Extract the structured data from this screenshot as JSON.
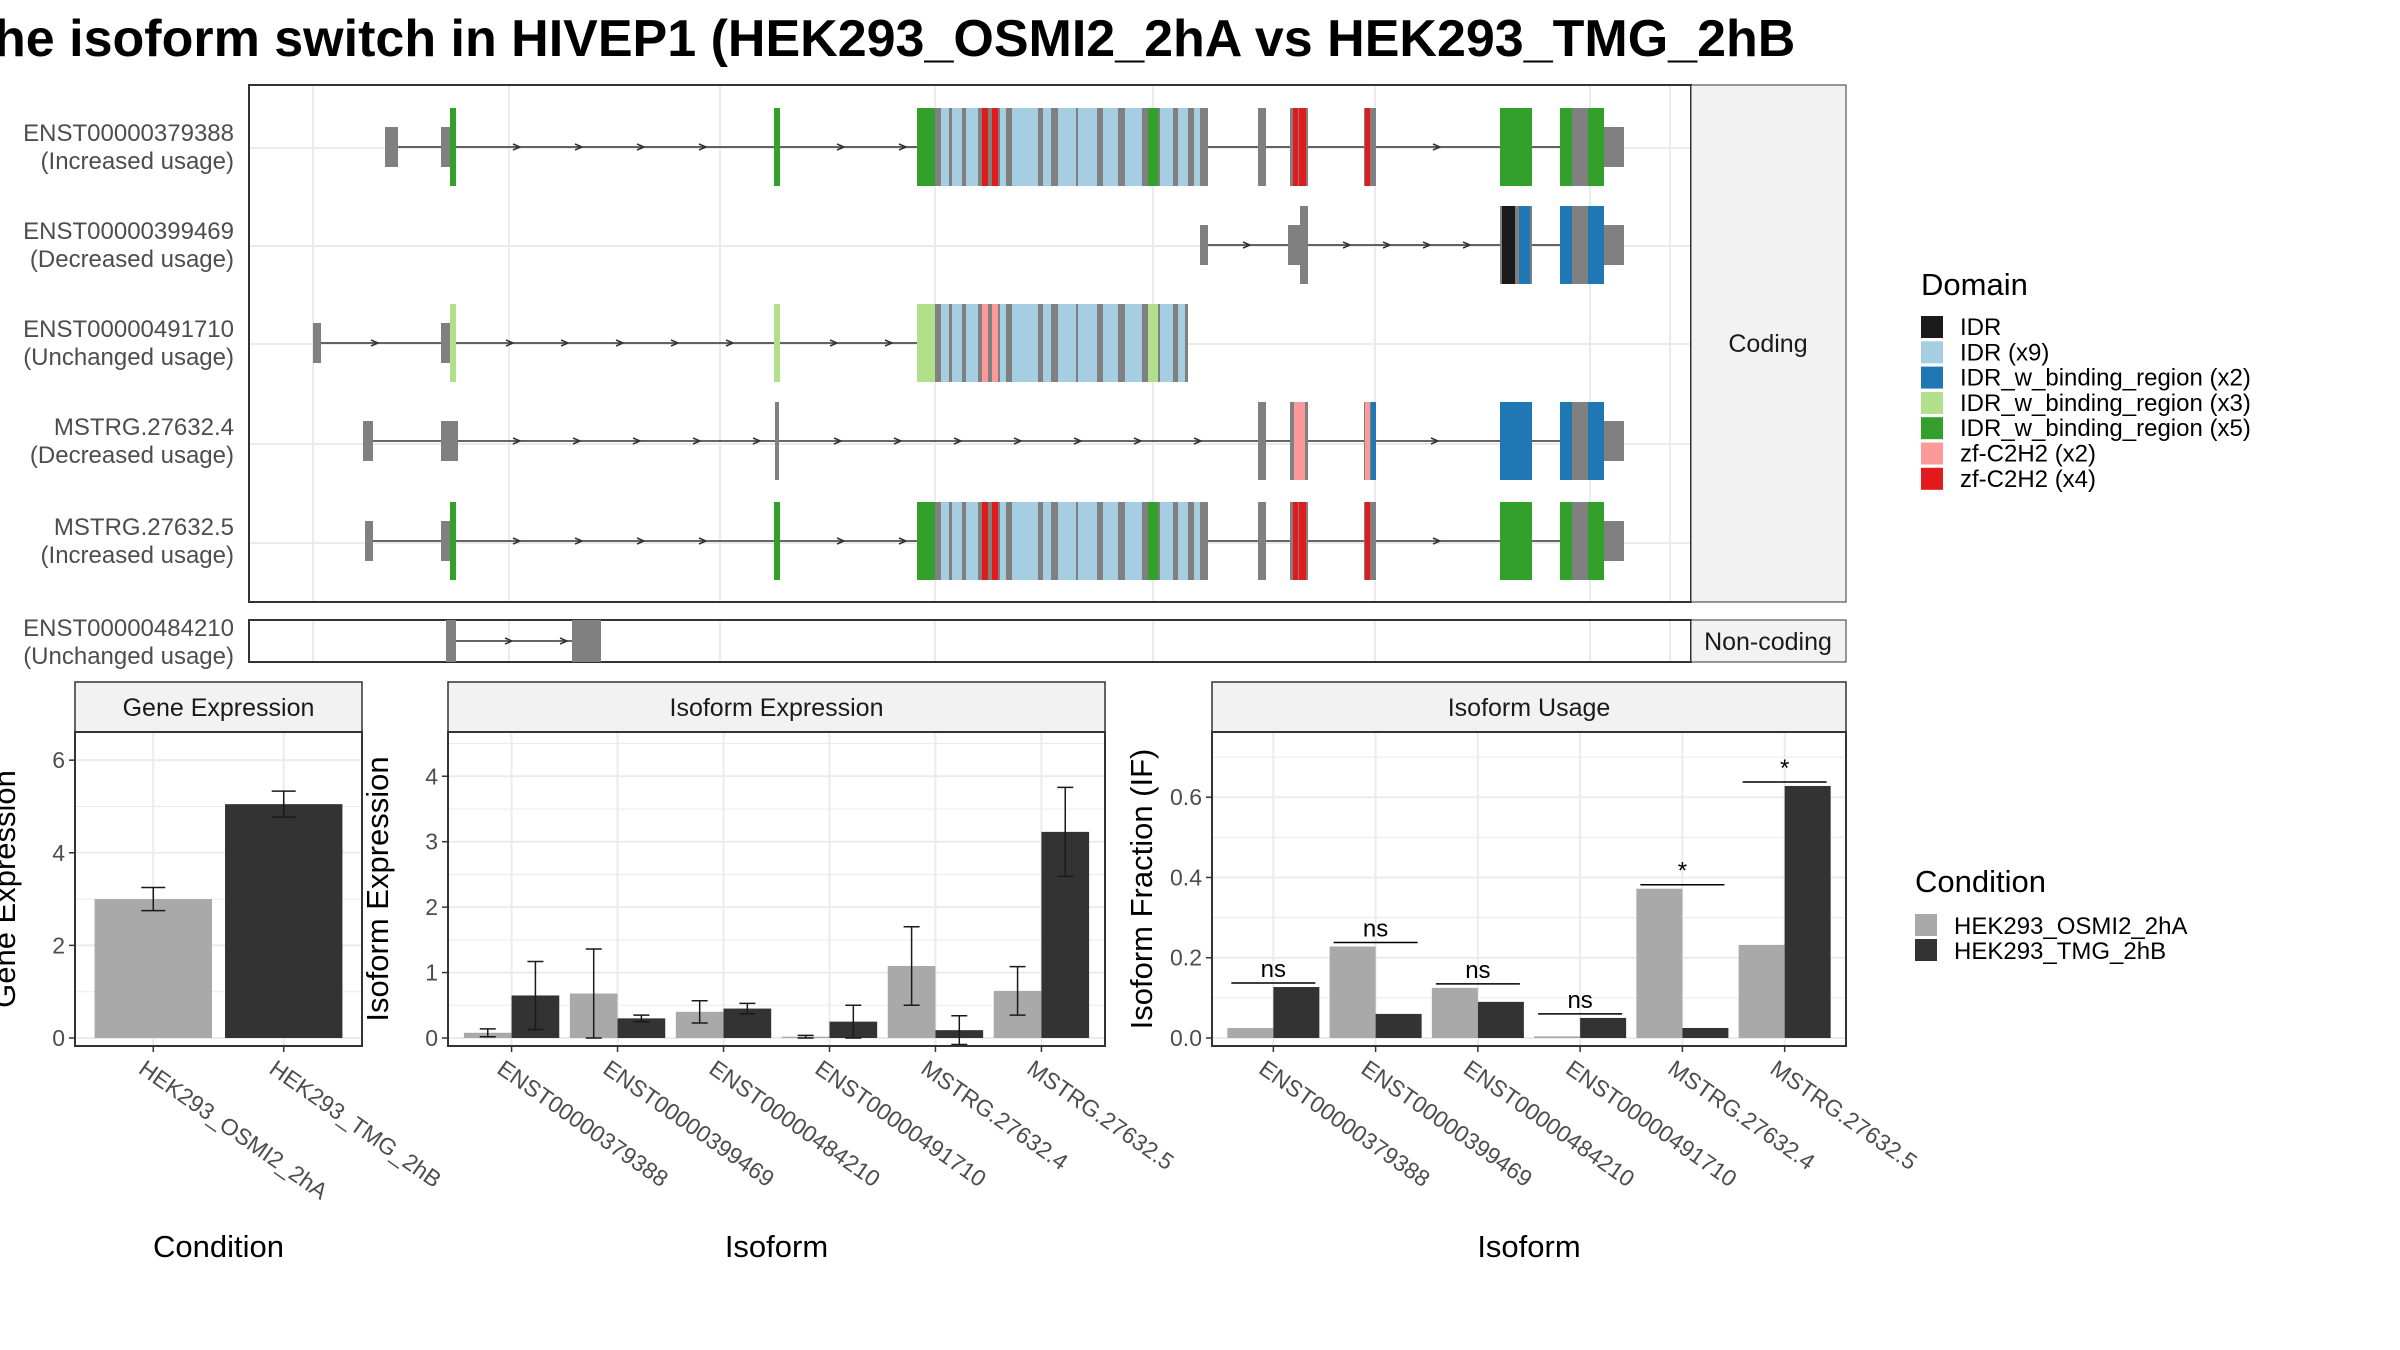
{
  "title": "he isoform switch in HIVEP1 (HEK293_OSMI2_2hA vs HEK293_TMG_2hB",
  "colors": {
    "grey_exon": "#808080",
    "IDR": "#1a1a1a",
    "IDR_x9": "#a6cee3",
    "IDR_w_binding_region_x2": "#1f78b4",
    "IDR_w_binding_region_x3": "#b2df8a",
    "IDR_w_binding_region_x5": "#33a02c",
    "zf_C2H2_x2": "#fb9a99",
    "zf_C2H2_x4": "#e31a1c",
    "cond_a": "#a9a9a9",
    "cond_b": "#333333"
  },
  "structure": {
    "coding_label": "Coding",
    "noncoding_label": "Non-coding",
    "transcripts": [
      {
        "id": "ENST00000379388",
        "usage": "(Increased usage)"
      },
      {
        "id": "ENST00000399469",
        "usage": "(Decreased usage)"
      },
      {
        "id": "ENST00000491710",
        "usage": "(Unchanged usage)"
      },
      {
        "id": "MSTRG.27632.4",
        "usage": "(Decreased usage)"
      },
      {
        "id": "MSTRG.27632.5",
        "usage": "(Increased usage)"
      }
    ],
    "noncoding": {
      "id": "ENST00000484210",
      "usage": "(Unchanged usage)"
    }
  },
  "domain_legend": {
    "title": "Domain",
    "items": [
      {
        "label": "IDR",
        "color": "#1a1a1a"
      },
      {
        "label": "IDR (x9)",
        "color": "#a6cee3"
      },
      {
        "label": "IDR_w_binding_region (x2)",
        "color": "#1f78b4"
      },
      {
        "label": "IDR_w_binding_region (x3)",
        "color": "#b2df8a"
      },
      {
        "label": "IDR_w_binding_region (x5)",
        "color": "#33a02c"
      },
      {
        "label": "zf-C2H2 (x2)",
        "color": "#fb9a99"
      },
      {
        "label": "zf-C2H2 (x4)",
        "color": "#e31a1c"
      }
    ]
  },
  "condition_legend": {
    "title": "Condition",
    "items": [
      {
        "label": "HEK293_OSMI2_2hA",
        "color": "#a9a9a9"
      },
      {
        "label": "HEK293_TMG_2hB",
        "color": "#333333"
      }
    ]
  },
  "chart_data": [
    {
      "type": "bar",
      "title": "Gene Expression",
      "xlabel": "Condition",
      "ylabel": "Gene Expression",
      "categories": [
        "HEK293_OSMI2_2hA",
        "HEK293_TMG_2hB"
      ],
      "values": [
        3.0,
        5.05
      ],
      "errors": [
        0.25,
        0.28
      ],
      "ylim": [
        0,
        6.5
      ],
      "yticks": [
        0,
        2,
        4,
        6
      ]
    },
    {
      "type": "bar",
      "title": "Isoform Expression",
      "xlabel": "Isoform",
      "ylabel": "Isoform Expression",
      "categories": [
        "ENST00000379388",
        "ENST00000399469",
        "ENST00000484210",
        "ENST00000491710",
        "MSTRG.27632.4",
        "MSTRG.27632.5"
      ],
      "series": [
        {
          "name": "HEK293_OSMI2_2hA",
          "values": [
            0.08,
            0.68,
            0.4,
            0.02,
            1.1,
            0.72
          ],
          "errors": [
            0.06,
            0.68,
            0.17,
            0.02,
            0.6,
            0.37
          ]
        },
        {
          "name": "HEK293_TMG_2hB",
          "values": [
            0.65,
            0.3,
            0.45,
            0.25,
            0.12,
            3.15
          ],
          "errors": [
            0.52,
            0.05,
            0.08,
            0.25,
            0.22,
            0.68
          ]
        }
      ],
      "ylim": [
        0,
        4.6
      ],
      "yticks": [
        0,
        1,
        2,
        3,
        4
      ]
    },
    {
      "type": "bar",
      "title": "Isoform Usage",
      "xlabel": "Isoform",
      "ylabel": "Isoform Fraction (IF)",
      "categories": [
        "ENST00000379388",
        "ENST00000399469",
        "ENST00000484210",
        "ENST00000491710",
        "MSTRG.27632.4",
        "MSTRG.27632.5"
      ],
      "series": [
        {
          "name": "HEK293_OSMI2_2hA",
          "values": [
            0.025,
            0.228,
            0.125,
            0.004,
            0.372,
            0.232
          ]
        },
        {
          "name": "HEK293_TMG_2hB",
          "values": [
            0.127,
            0.06,
            0.09,
            0.05,
            0.025,
            0.628
          ]
        }
      ],
      "significance": [
        "ns",
        "ns",
        "ns",
        "ns",
        "*",
        "*"
      ],
      "ylim": [
        0,
        0.75
      ],
      "yticks": [
        0.0,
        0.2,
        0.4,
        0.6
      ],
      "ytick_labels": [
        "0.0",
        "0.2",
        "0.4",
        "0.6"
      ]
    }
  ]
}
